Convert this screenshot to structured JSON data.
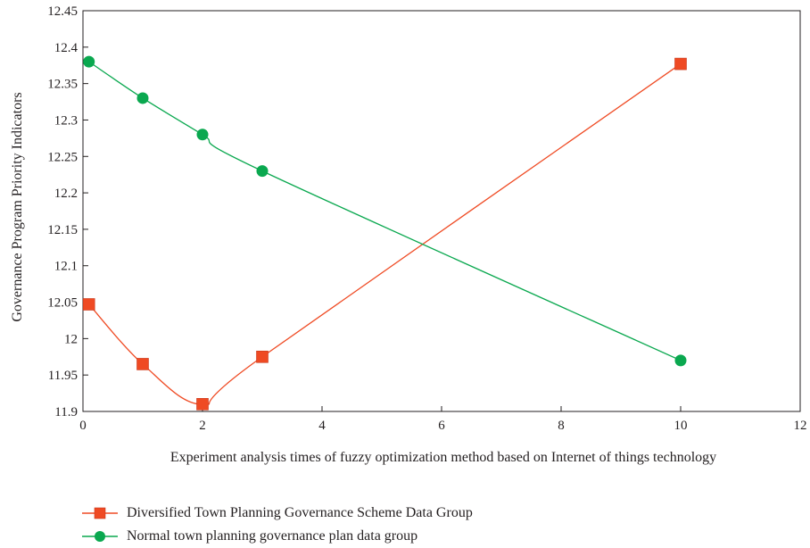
{
  "chart_data": {
    "type": "line",
    "xlabel": "Experiment analysis times of fuzzy optimization method based on Internet of things technology",
    "ylabel": "Governance Program Priority Indicators",
    "xlim": [
      0,
      12
    ],
    "ylim": [
      11.9,
      12.45
    ],
    "xticks": [
      "0",
      "2",
      "4",
      "6",
      "8",
      "10",
      "12"
    ],
    "yticks": [
      "11.9",
      "11.95",
      "12",
      "12.05",
      "12.1",
      "12.15",
      "12.2",
      "12.25",
      "12.3",
      "12.35",
      "12.4",
      "12.45"
    ],
    "grid": false,
    "legend_position": "bottom",
    "series": [
      {
        "name": "Diversified Town Planning Governance Scheme Data Group",
        "marker": "square",
        "color": "#ef4a23",
        "x": [
          0.1,
          1,
          2,
          3,
          10
        ],
        "y": [
          12.047,
          11.965,
          11.91,
          11.975,
          12.377
        ]
      },
      {
        "name": "Normal town planning governance plan data group",
        "marker": "circle",
        "color": "#0aa84f",
        "x": [
          0.1,
          1,
          2,
          3,
          10
        ],
        "y": [
          12.38,
          12.33,
          12.28,
          12.23,
          11.97
        ]
      }
    ]
  }
}
